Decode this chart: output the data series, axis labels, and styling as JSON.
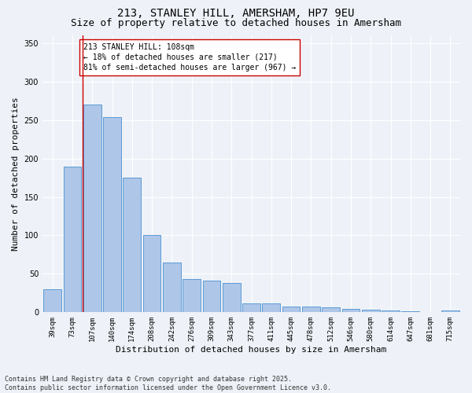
{
  "title": "213, STANLEY HILL, AMERSHAM, HP7 9EU",
  "subtitle": "Size of property relative to detached houses in Amersham",
  "xlabel": "Distribution of detached houses by size in Amersham",
  "ylabel": "Number of detached properties",
  "categories": [
    "39sqm",
    "73sqm",
    "107sqm",
    "140sqm",
    "174sqm",
    "208sqm",
    "242sqm",
    "276sqm",
    "309sqm",
    "343sqm",
    "377sqm",
    "411sqm",
    "445sqm",
    "478sqm",
    "512sqm",
    "546sqm",
    "580sqm",
    "614sqm",
    "647sqm",
    "681sqm",
    "715sqm"
  ],
  "values": [
    30,
    189,
    270,
    254,
    175,
    100,
    65,
    43,
    41,
    38,
    12,
    12,
    8,
    7,
    6,
    4,
    3,
    2,
    1,
    0,
    2
  ],
  "bar_color": "#aec6e8",
  "bar_edge_color": "#5b9bd5",
  "background_color": "#eef2f8",
  "grid_color": "#ffffff",
  "vline_x_index": 2,
  "vline_color": "#cc0000",
  "annotation_text": "213 STANLEY HILL: 108sqm\n← 18% of detached houses are smaller (217)\n81% of semi-detached houses are larger (967) →",
  "annotation_box_color": "#ffffff",
  "annotation_box_edge_color": "#cc0000",
  "ylim": [
    0,
    360
  ],
  "yticks": [
    0,
    50,
    100,
    150,
    200,
    250,
    300,
    350
  ],
  "footer": "Contains HM Land Registry data © Crown copyright and database right 2025.\nContains public sector information licensed under the Open Government Licence v3.0.",
  "title_fontsize": 10,
  "subtitle_fontsize": 9,
  "ylabel_fontsize": 8,
  "xlabel_fontsize": 8,
  "tick_fontsize": 6.5,
  "ytick_fontsize": 7,
  "annotation_fontsize": 7,
  "footer_fontsize": 6
}
